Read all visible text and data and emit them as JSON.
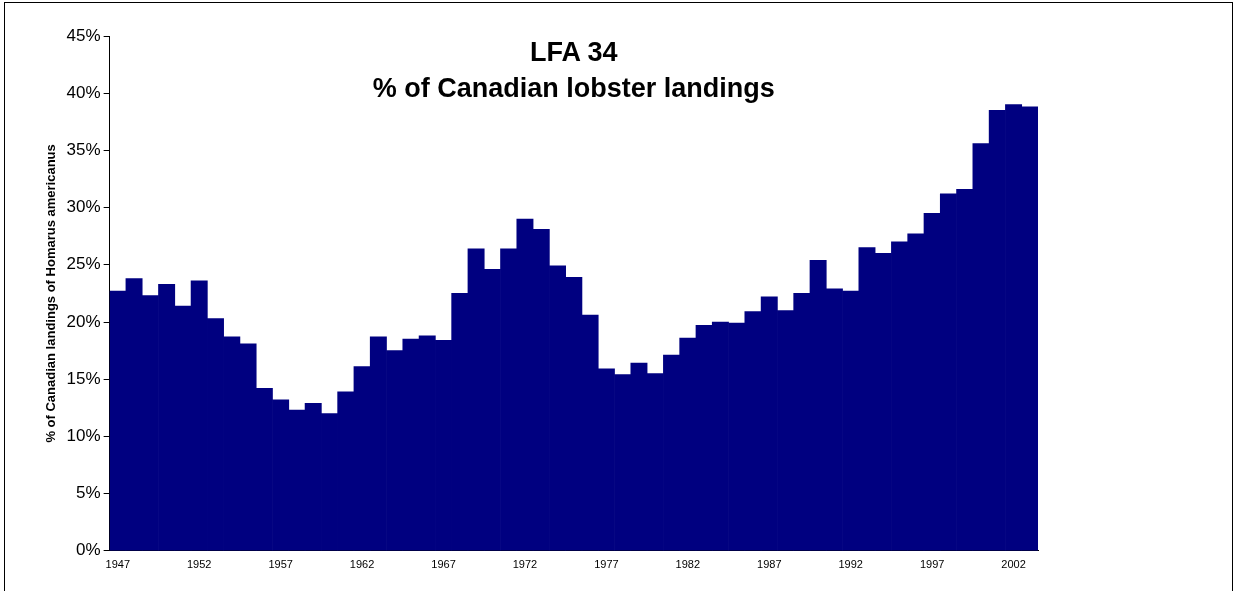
{
  "chart_data": {
    "type": "bar",
    "title": "LFA 34",
    "subtitle": "% of Canadian lobster landings",
    "ylabel": "% of Canadian landings of Homarus americanus",
    "categories": [
      "1947",
      null,
      null,
      null,
      null,
      "1952",
      null,
      null,
      null,
      null,
      "1957",
      null,
      null,
      null,
      null,
      "1962",
      null,
      null,
      null,
      null,
      "1967",
      null,
      null,
      null,
      null,
      "1972",
      null,
      null,
      null,
      null,
      "1977",
      null,
      null,
      null,
      null,
      "1982",
      null,
      null,
      null,
      null,
      "1987",
      null,
      null,
      null,
      null,
      "1992",
      null,
      null,
      null,
      null,
      "1997",
      null,
      null,
      null,
      null,
      "2002",
      null
    ],
    "values": [
      22.7,
      23.8,
      22.3,
      23.3,
      21.4,
      23.6,
      20.3,
      18.7,
      18.1,
      14.2,
      13.2,
      12.3,
      12.9,
      12.0,
      13.9,
      16.1,
      18.7,
      17.5,
      18.5,
      18.8,
      18.4,
      22.5,
      26.4,
      24.6,
      26.4,
      29.0,
      28.1,
      24.9,
      23.9,
      20.6,
      15.9,
      15.4,
      16.4,
      15.5,
      17.1,
      18.6,
      19.7,
      20.0,
      19.9,
      20.9,
      22.2,
      21.0,
      22.5,
      25.4,
      22.9,
      22.7,
      26.5,
      26.0,
      27.0,
      27.7,
      29.5,
      31.2,
      31.6,
      35.6,
      38.5,
      39.0,
      38.8
    ],
    "color": "#000080",
    "ylim": [
      0,
      45
    ],
    "yticks": [
      {
        "value": 0,
        "label": "0%"
      },
      {
        "value": 5,
        "label": "5%"
      },
      {
        "value": 10,
        "label": "10%"
      },
      {
        "value": 15,
        "label": "15%"
      },
      {
        "value": 20,
        "label": "20%"
      },
      {
        "value": 25,
        "label": "25%"
      },
      {
        "value": 30,
        "label": "30%"
      },
      {
        "value": 35,
        "label": "35%"
      },
      {
        "value": 40,
        "label": "40%"
      },
      {
        "value": 45,
        "label": "45%"
      }
    ],
    "grid": false,
    "legend": false
  }
}
